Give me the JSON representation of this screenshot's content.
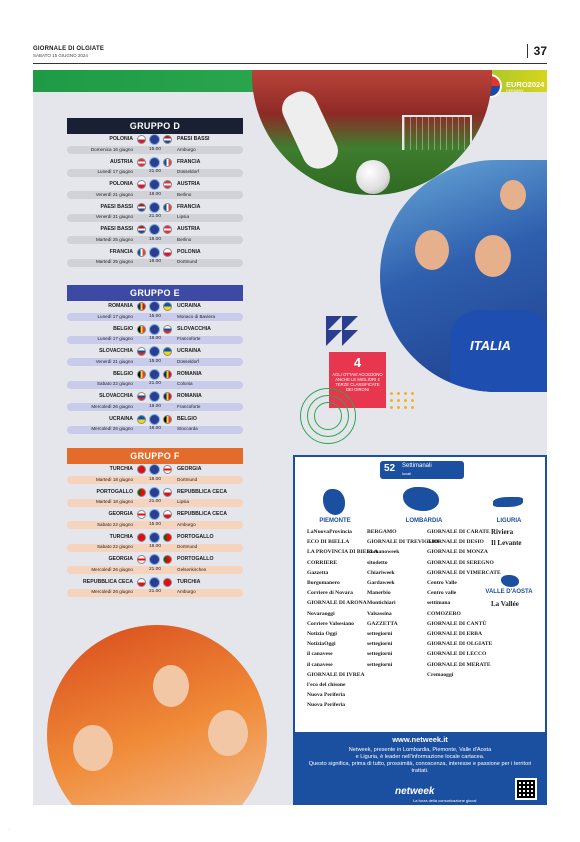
{
  "header": {
    "title": "GIORNALE DI OLGIATE",
    "date": "SABATO 15 GIUGNO 2024",
    "page": "37"
  },
  "euro": {
    "name": "EURO2024",
    "sub": "GERMANY"
  },
  "colors": {
    "green": "#2da84e",
    "navy": "#1a2033",
    "blue": "#3d4aa3",
    "orange": "#e36c2c",
    "promo_red": "#e8364f",
    "ad_blue": "#1b4fa0"
  },
  "groups": [
    {
      "title": "GRUPPO D",
      "cls": "gd",
      "matches": [
        {
          "home": "POLONIA",
          "away": "PAESI BASSI",
          "date": "Domenica 16 giugno",
          "time": "15.00",
          "city": "Amburgo",
          "f1": [
            "#fff",
            "#dc143c"
          ],
          "f2": [
            "#ae1c28",
            "#fff",
            "#21468b"
          ]
        },
        {
          "home": "AUSTRIA",
          "away": "FRANCIA",
          "date": "Lunedì 17 giugno",
          "time": "21.00",
          "city": "Düsseldorf",
          "f1": [
            "#ed2939",
            "#fff",
            "#ed2939"
          ],
          "f2": [
            "#0055a4",
            "#fff",
            "#ef4135"
          ],
          "f2v": true
        },
        {
          "home": "POLONIA",
          "away": "AUSTRIA",
          "date": "Venerdì 21 giugno",
          "time": "18.00",
          "city": "Berlino",
          "f1": [
            "#fff",
            "#dc143c"
          ],
          "f2": [
            "#ed2939",
            "#fff",
            "#ed2939"
          ]
        },
        {
          "home": "PAESI BASSI",
          "away": "FRANCIA",
          "date": "Venerdì 21 giugno",
          "time": "21.00",
          "city": "Lipsia",
          "f1": [
            "#ae1c28",
            "#fff",
            "#21468b"
          ],
          "f2": [
            "#0055a4",
            "#fff",
            "#ef4135"
          ],
          "f2v": true
        },
        {
          "home": "PAESI BASSI",
          "away": "AUSTRIA",
          "date": "Martedì 25 giugno",
          "time": "18.00",
          "city": "Berlino",
          "f1": [
            "#ae1c28",
            "#fff",
            "#21468b"
          ],
          "f2": [
            "#ed2939",
            "#fff",
            "#ed2939"
          ]
        },
        {
          "home": "FRANCIA",
          "away": "POLONIA",
          "date": "Martedì 25 giugno",
          "time": "18.00",
          "city": "Dortmund",
          "f1": [
            "#0055a4",
            "#fff",
            "#ef4135"
          ],
          "f1v": true,
          "f2": [
            "#fff",
            "#dc143c"
          ]
        }
      ]
    },
    {
      "title": "GRUPPO E",
      "cls": "ge",
      "matches": [
        {
          "home": "ROMANIA",
          "away": "UCRAINA",
          "date": "Lunedì 17 giugno",
          "time": "15.00",
          "city": "Monaco di Baviera",
          "f1": [
            "#002b7f",
            "#fcd116",
            "#ce1126"
          ],
          "f1v": true,
          "f2": [
            "#0057b7",
            "#ffd700"
          ]
        },
        {
          "home": "BELGIO",
          "away": "SLOVACCHIA",
          "date": "Lunedì 17 giugno",
          "time": "18.00",
          "city": "Francoforte",
          "f1": [
            "#000",
            "#fdda24",
            "#ef3340"
          ],
          "f1v": true,
          "f2": [
            "#fff",
            "#0b4ea2",
            "#ee1c25"
          ]
        },
        {
          "home": "SLOVACCHIA",
          "away": "UCRAINA",
          "date": "Venerdì 21 giugno",
          "time": "15.00",
          "city": "Düsseldorf",
          "f1": [
            "#fff",
            "#0b4ea2",
            "#ee1c25"
          ],
          "f2": [
            "#0057b7",
            "#ffd700"
          ]
        },
        {
          "home": "BELGIO",
          "away": "ROMANIA",
          "date": "Sabato 22 giugno",
          "time": "21.00",
          "city": "Colonia",
          "f1": [
            "#000",
            "#fdda24",
            "#ef3340"
          ],
          "f1v": true,
          "f2": [
            "#002b7f",
            "#fcd116",
            "#ce1126"
          ],
          "f2v": true
        },
        {
          "home": "SLOVACCHIA",
          "away": "ROMANIA",
          "date": "Mercoledì 26 giugno",
          "time": "18.00",
          "city": "Francoforte",
          "f1": [
            "#fff",
            "#0b4ea2",
            "#ee1c25"
          ],
          "f2": [
            "#002b7f",
            "#fcd116",
            "#ce1126"
          ],
          "f2v": true
        },
        {
          "home": "UCRAINA",
          "away": "BELGIO",
          "date": "Mercoledì 26 giugno",
          "time": "18.00",
          "city": "Stoccarda",
          "f1": [
            "#0057b7",
            "#ffd700"
          ],
          "f2": [
            "#000",
            "#fdda24",
            "#ef3340"
          ],
          "f2v": true
        }
      ]
    },
    {
      "title": "GRUPPO F",
      "cls": "gf",
      "matches": [
        {
          "home": "TURCHIA",
          "away": "GEORGIA",
          "date": "Martedì 18 giugno",
          "time": "18.00",
          "city": "Dortmund",
          "f1": [
            "#e30a17",
            "#e30a17"
          ],
          "f2": [
            "#fff",
            "#ff0000",
            "#fff"
          ]
        },
        {
          "home": "PORTOGALLO",
          "away": "REPUBBLICA CECA",
          "date": "Martedì 18 giugno",
          "time": "21.00",
          "city": "Lipsia",
          "f1": [
            "#006600",
            "#ff0000",
            "#ff0000"
          ],
          "f1v": true,
          "f2": [
            "#fff",
            "#d7141a"
          ]
        },
        {
          "home": "GEORGIA",
          "away": "REPUBBLICA CECA",
          "date": "Sabato 22 giugno",
          "time": "15.00",
          "city": "Amburgo",
          "f1": [
            "#fff",
            "#ff0000",
            "#fff"
          ],
          "f2": [
            "#fff",
            "#d7141a"
          ]
        },
        {
          "home": "TURCHIA",
          "away": "PORTOGALLO",
          "date": "Sabato 22 giugno",
          "time": "18.00",
          "city": "Dortmund",
          "f1": [
            "#e30a17",
            "#e30a17"
          ],
          "f2": [
            "#006600",
            "#ff0000",
            "#ff0000"
          ],
          "f2v": true
        },
        {
          "home": "GEORGIA",
          "away": "PORTOGALLO",
          "date": "Mercoledì 26 giugno",
          "time": "21.00",
          "city": "Gelsenkirchen",
          "f1": [
            "#fff",
            "#ff0000",
            "#fff"
          ],
          "f2": [
            "#006600",
            "#ff0000",
            "#ff0000"
          ],
          "f2v": true
        },
        {
          "home": "REPUBBLICA CECA",
          "away": "TURCHIA",
          "date": "Mercoledì 26 giugno",
          "time": "21.00",
          "city": "Amburgo",
          "f1": [
            "#fff",
            "#d7141a"
          ],
          "f2": [
            "#e30a17",
            "#e30a17"
          ]
        }
      ]
    }
  ],
  "promo": {
    "number": "4",
    "text": "AGLI OTTAVI ACCEDONO ANCHE LE MIGLIORI 4 TERZE CLASSIFICATE DEI GIRONI"
  },
  "ad": {
    "count": "52",
    "settimanali": "Settimanali",
    "locali": "locali",
    "regions": {
      "piemonte": "PIEMONTE",
      "lombardia": "LOMBARDIA",
      "liguria": "LIGURIA",
      "aosta": "VALLE D'AOSTA"
    },
    "piemonte_papers": [
      "LaNuovaProvincia",
      "ECO DI BIELLA",
      "LA PROVINCIA DI BIELLA",
      "CORRIERE",
      "Gazzetta",
      "Borgomanero",
      "Corriere di Novara",
      "GIORNALE DI ARONA",
      "Novaraoggi",
      "Corriere Valsesiano",
      "Notizia Oggi",
      "NotiziaOggi",
      "il canavese",
      "il canavese",
      "GIORNALE DI IVREA",
      "l'eco del chisone",
      "Nuova Periferia",
      "Nuova Periferia"
    ],
    "lombardia_papers_a": [
      "BERGAMO",
      "GIORNALE DI TREVIGLIO",
      "Romanoweek",
      "sitodetto",
      "Chiariweek",
      "Gardaweek",
      "Manerbio",
      "Montichiari",
      "Valsassina",
      "GAZZETTA",
      "settegiorni",
      "settegiorni",
      "settegiorni",
      "settegiorni"
    ],
    "lombardia_papers_b": [
      "GIORNALE DI CARATE",
      "GIORNALE DI DESIO",
      "GIORNALE DI MONZA",
      "GIORNALE DI SEREGNO",
      "GIORNALE DI VIMERCATE",
      "Centro Valle",
      "Centro valle",
      "settimana",
      "COMOZERO",
      "GIORNALE DI CANTÙ",
      "GIORNALE DI ERBA",
      "GIORNALE DI OLGIATE",
      "GIORNALE DI LECCO",
      "GIORNALE DI MERATE",
      "Cremaoggi"
    ],
    "liguria_papers": [
      "Riviera",
      "Il Levante"
    ],
    "aosta_papers": [
      "La Vallée"
    ],
    "url": "www.netweek.it",
    "desc1": "Netweek, presente in Lombardia, Piemonte, Valle d'Aosta",
    "desc2": "e Liguria, è leader nell'informazione locale cartacea.",
    "desc3": "Questo significa, prima di tutto, prossimità, conoscenza, interesse e passione per i territori trattati.",
    "brand": "netweek",
    "tagline": "La forza della comunicazione glocal"
  }
}
